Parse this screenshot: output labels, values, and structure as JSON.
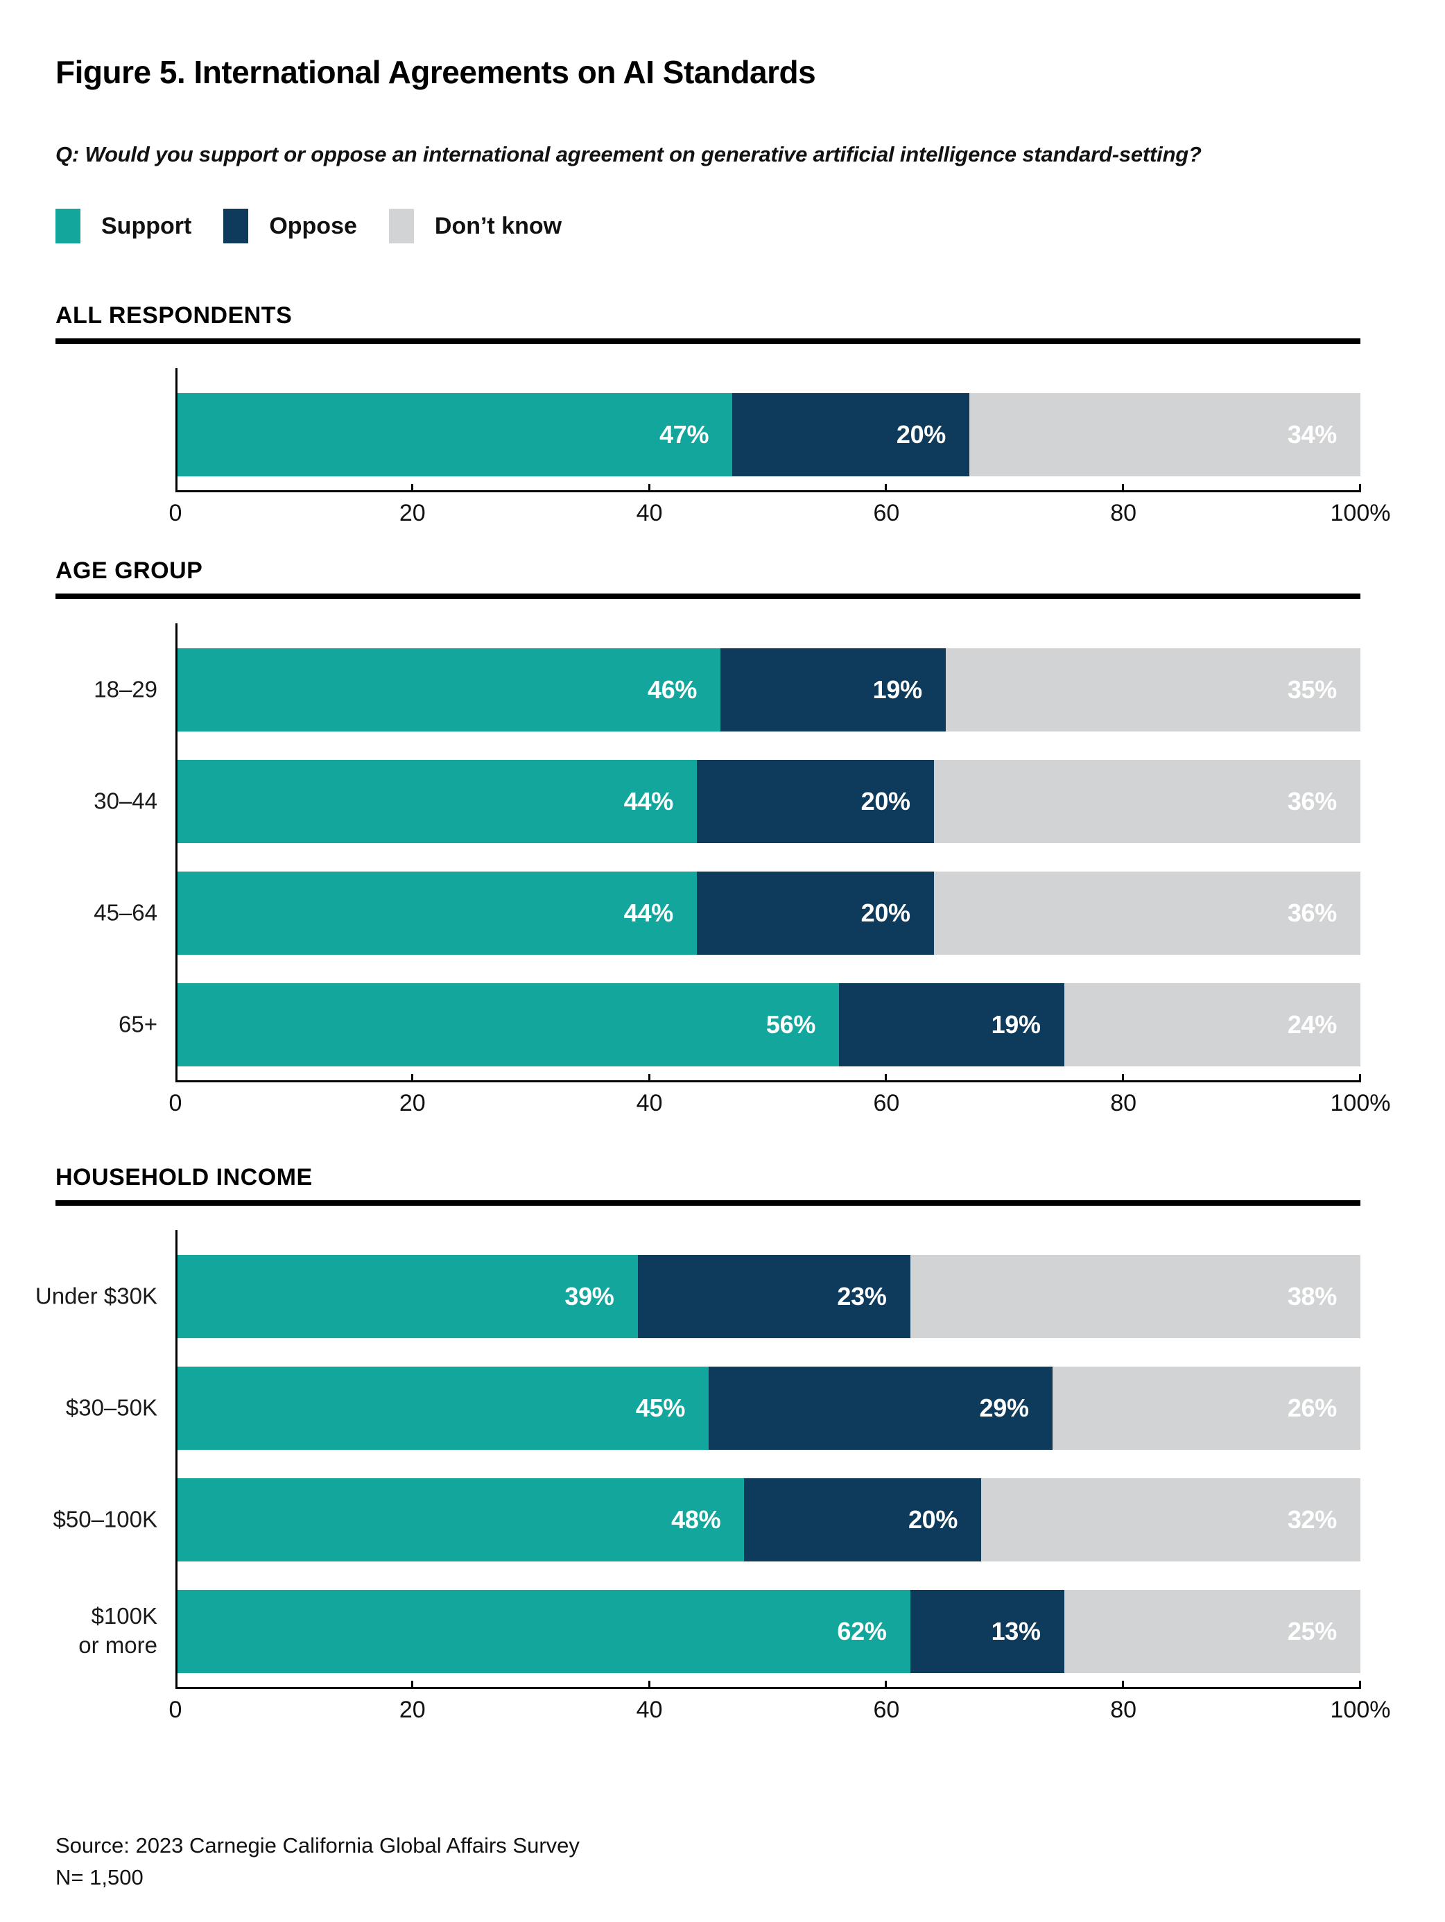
{
  "title": "Figure 5. International Agreements on AI Standards",
  "question": "Q: Would you support or oppose an international agreement on generative artificial intelligence standard-setting?",
  "legend": [
    {
      "label": "Support",
      "color_key": "support"
    },
    {
      "label": "Oppose",
      "color_key": "oppose"
    },
    {
      "label": "Don’t know",
      "color_key": "dont_know"
    }
  ],
  "colors": {
    "support": "#12A69D",
    "oppose": "#0E3A5C",
    "dont_know": "#D1D3D4",
    "axis": "#000000",
    "value_label": "#FFFFFF"
  },
  "chart_data": [
    {
      "type": "bar",
      "stacked": true,
      "orientation": "horizontal",
      "section": "ALL RESPONDENTS",
      "categories": [
        ""
      ],
      "series": [
        {
          "name": "Support",
          "color_key": "support",
          "values": [
            47
          ]
        },
        {
          "name": "Oppose",
          "color_key": "oppose",
          "values": [
            20
          ]
        },
        {
          "name": "Don't know",
          "color_key": "dont_know",
          "values": [
            34
          ]
        }
      ],
      "xlim": [
        0,
        100
      ],
      "x_ticks": [
        {
          "value": 0,
          "label": "0"
        },
        {
          "value": 20,
          "label": "20"
        },
        {
          "value": 40,
          "label": "40"
        },
        {
          "value": 60,
          "label": "60"
        },
        {
          "value": 80,
          "label": "80"
        },
        {
          "value": 100,
          "label": "100%"
        }
      ],
      "value_label_format": "percent",
      "grid": false,
      "legend_position": "top"
    },
    {
      "type": "bar",
      "stacked": true,
      "orientation": "horizontal",
      "section": "AGE GROUP",
      "categories": [
        "18–29",
        "30–44",
        "45–64",
        "65+"
      ],
      "series": [
        {
          "name": "Support",
          "color_key": "support",
          "values": [
            46,
            44,
            44,
            56
          ]
        },
        {
          "name": "Oppose",
          "color_key": "oppose",
          "values": [
            19,
            20,
            20,
            19
          ]
        },
        {
          "name": "Don't know",
          "color_key": "dont_know",
          "values": [
            35,
            36,
            36,
            24
          ]
        }
      ],
      "xlim": [
        0,
        100
      ],
      "x_ticks": [
        {
          "value": 0,
          "label": "0"
        },
        {
          "value": 20,
          "label": "20"
        },
        {
          "value": 40,
          "label": "40"
        },
        {
          "value": 60,
          "label": "60"
        },
        {
          "value": 80,
          "label": "80"
        },
        {
          "value": 100,
          "label": "100%"
        }
      ],
      "value_label_format": "percent",
      "grid": false
    },
    {
      "type": "bar",
      "stacked": true,
      "orientation": "horizontal",
      "section": "HOUSEHOLD INCOME",
      "categories": [
        "Under $30K",
        "$30–50K",
        "$50–100K",
        "$100K\nor more"
      ],
      "series": [
        {
          "name": "Support",
          "color_key": "support",
          "values": [
            39,
            45,
            48,
            62
          ]
        },
        {
          "name": "Oppose",
          "color_key": "oppose",
          "values": [
            23,
            29,
            20,
            13
          ]
        },
        {
          "name": "Don't know",
          "color_key": "dont_know",
          "values": [
            38,
            26,
            32,
            25
          ]
        }
      ],
      "xlim": [
        0,
        100
      ],
      "x_ticks": [
        {
          "value": 0,
          "label": "0"
        },
        {
          "value": 20,
          "label": "20"
        },
        {
          "value": 40,
          "label": "40"
        },
        {
          "value": 60,
          "label": "60"
        },
        {
          "value": 80,
          "label": "80"
        },
        {
          "value": 100,
          "label": "100%"
        }
      ],
      "value_label_format": "percent",
      "grid": false
    }
  ],
  "source": {
    "line1": "Source: 2023 Carnegie California Global Affairs Survey",
    "line2": "N= 1,500"
  }
}
